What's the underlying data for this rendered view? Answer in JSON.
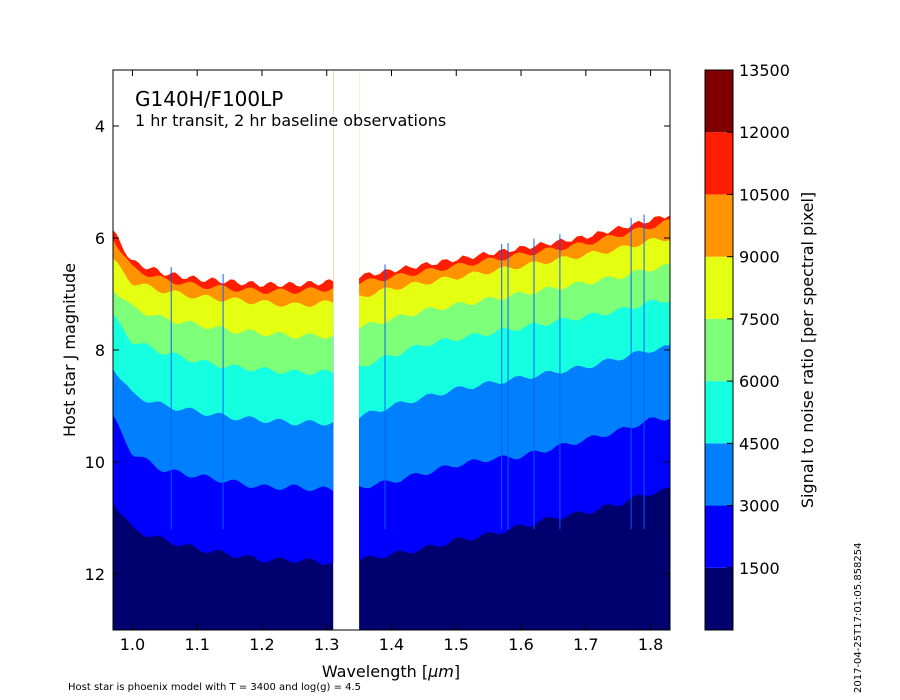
{
  "chart_data": {
    "type": "heatmap",
    "title": "G140H/F100LP",
    "subtitle": "1 hr transit, 2 hr baseline observations",
    "xlabel_prefix": "Wavelength [",
    "xlabel_unit": "μm",
    "xlabel_suffix": "]",
    "ylabel": "Host star J magnitude",
    "xlim": [
      0.97,
      1.83
    ],
    "ylim": [
      13.0,
      3.0
    ],
    "y_inverted": true,
    "grid": false,
    "x_ticks": [
      "1.0",
      "1.1",
      "1.2",
      "1.3",
      "1.4",
      "1.5",
      "1.6",
      "1.7",
      "1.8"
    ],
    "y_ticks": [
      "4",
      "6",
      "8",
      "10",
      "12"
    ],
    "detector_gap": [
      1.31,
      1.35
    ],
    "colorbar": {
      "label": "Signal to noise ratio [per spectral pixel]",
      "levels": [
        0,
        1500,
        3000,
        4500,
        6000,
        7500,
        9000,
        10500,
        12000,
        13500
      ],
      "tick_labels": [
        "1500",
        "3000",
        "4500",
        "6000",
        "7500",
        "9000",
        "10500",
        "12000",
        "13500"
      ],
      "colors": [
        "#00006e",
        "#0000ff",
        "#0080ff",
        "#15ffe1",
        "#7dff7a",
        "#e4ff12",
        "#ff9400",
        "#ff1e00",
        "#800000"
      ]
    },
    "contours": {
      "x": [
        0.97,
        1.0,
        1.05,
        1.1,
        1.15,
        1.2,
        1.25,
        1.31,
        1.35,
        1.4,
        1.45,
        1.5,
        1.55,
        1.6,
        1.65,
        1.7,
        1.75,
        1.8,
        1.83
      ],
      "levels": [
        {
          "snr": 1500,
          "mag": [
            10.7,
            11.2,
            11.4,
            11.55,
            11.65,
            11.75,
            11.75,
            11.8,
            11.75,
            11.65,
            11.55,
            11.4,
            11.3,
            11.15,
            11.0,
            10.9,
            10.75,
            10.55,
            10.5
          ]
        },
        {
          "snr": 3000,
          "mag": [
            9.2,
            9.85,
            10.15,
            10.25,
            10.35,
            10.45,
            10.45,
            10.5,
            10.45,
            10.35,
            10.2,
            10.05,
            9.95,
            9.9,
            9.75,
            9.6,
            9.45,
            9.25,
            9.2
          ]
        },
        {
          "snr": 4500,
          "mag": [
            8.3,
            8.8,
            9.0,
            9.1,
            9.2,
            9.25,
            9.3,
            9.3,
            9.2,
            9.0,
            8.85,
            8.7,
            8.6,
            8.5,
            8.4,
            8.3,
            8.15,
            8.0,
            7.95
          ]
        },
        {
          "snr": 6000,
          "mag": [
            7.4,
            7.85,
            8.05,
            8.2,
            8.3,
            8.35,
            8.4,
            8.4,
            8.3,
            8.1,
            7.9,
            7.8,
            7.7,
            7.6,
            7.5,
            7.4,
            7.3,
            7.15,
            7.1
          ]
        },
        {
          "snr": 7500,
          "mag": [
            6.9,
            7.25,
            7.45,
            7.55,
            7.65,
            7.7,
            7.75,
            7.75,
            7.6,
            7.45,
            7.3,
            7.2,
            7.1,
            7.0,
            6.9,
            6.8,
            6.7,
            6.55,
            6.5
          ]
        },
        {
          "snr": 9000,
          "mag": [
            6.4,
            6.8,
            6.95,
            7.05,
            7.1,
            7.15,
            7.2,
            7.15,
            7.05,
            6.9,
            6.8,
            6.7,
            6.6,
            6.5,
            6.4,
            6.3,
            6.2,
            6.05,
            6.0
          ]
        },
        {
          "snr": 10500,
          "mag": [
            6.0,
            6.55,
            6.75,
            6.85,
            6.9,
            6.95,
            6.95,
            6.9,
            6.8,
            6.7,
            6.6,
            6.5,
            6.4,
            6.3,
            6.2,
            6.1,
            5.95,
            5.8,
            5.7
          ]
        }
      ],
      "spikes": [
        1.06,
        1.14,
        1.39,
        1.57,
        1.58,
        1.62,
        1.66,
        1.77,
        1.79
      ]
    }
  },
  "footnote": "Host star is phoenix model with T = 3400 and log(g) = 4.5",
  "timestamp": "2017-04-25T17:01:05.858254"
}
